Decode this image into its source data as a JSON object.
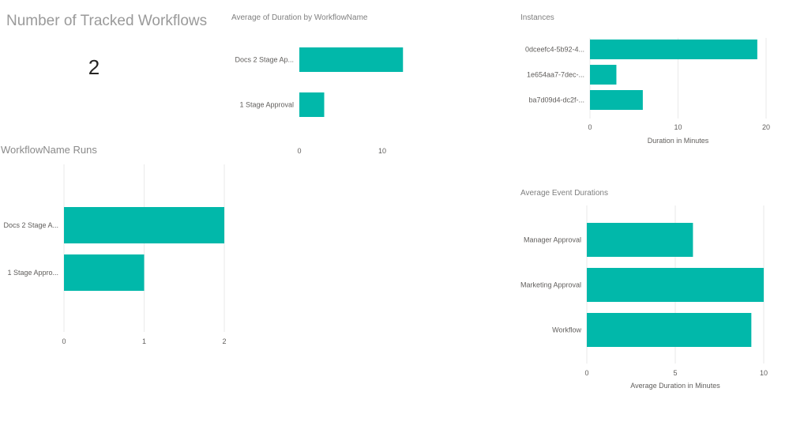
{
  "card": {
    "title": "Number of Tracked Workflows",
    "value": "2"
  },
  "colors": {
    "bar": "#01b8aa"
  },
  "chart_data": [
    {
      "id": "avg-duration",
      "type": "bar",
      "orientation": "horizontal",
      "title": "Average of Duration by WorkflowName",
      "categories": [
        "Docs 2 Stage Ap...",
        "1 Stage Approval"
      ],
      "values": [
        12.5,
        3
      ],
      "xlim": [
        0,
        14
      ],
      "xticks": [
        0,
        10
      ],
      "xlabel": "",
      "grid": false
    },
    {
      "id": "instances",
      "type": "bar",
      "orientation": "horizontal",
      "title": "Instances",
      "categories": [
        "0dceefc4-5b92-4...",
        "1e654aa7-7dec-...",
        "ba7d09d4-dc2f-..."
      ],
      "values": [
        19,
        3,
        6
      ],
      "xlim": [
        0,
        20
      ],
      "xticks": [
        0,
        10,
        20
      ],
      "xlabel": "Duration in Minutes",
      "grid": true
    },
    {
      "id": "runs",
      "type": "bar",
      "orientation": "horizontal",
      "title": "WorkflowName Runs",
      "categories": [
        "Docs 2 Stage A...",
        "1 Stage Appro..."
      ],
      "values": [
        2,
        1
      ],
      "xlim": [
        0,
        2
      ],
      "xticks": [
        0,
        1,
        2
      ],
      "xlabel": "",
      "grid": true
    },
    {
      "id": "event-durations",
      "type": "bar",
      "orientation": "horizontal",
      "title": "Average Event Durations",
      "categories": [
        "Manager Approval",
        "Marketing Approval",
        "Workflow"
      ],
      "values": [
        6,
        10,
        9.3
      ],
      "xlim": [
        0,
        10
      ],
      "xticks": [
        0,
        5,
        10
      ],
      "xlabel": "Average Duration in Minutes",
      "grid": true
    }
  ]
}
